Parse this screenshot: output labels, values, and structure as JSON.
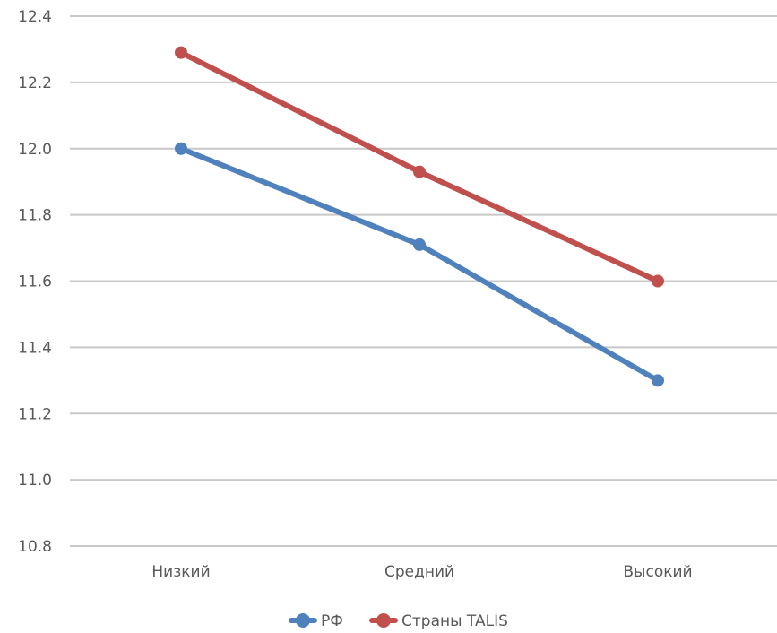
{
  "chart_data": {
    "type": "line",
    "title": "",
    "xlabel": "",
    "ylabel": "",
    "categories": [
      "Низкий",
      "Средний",
      "Высокий"
    ],
    "ylim": [
      10.8,
      12.4
    ],
    "y_ticks": [
      10.8,
      11.0,
      11.2,
      11.4,
      11.6,
      11.8,
      12.0,
      12.2,
      12.4
    ],
    "y_tick_labels": [
      "10.8",
      "11.0",
      "11.2",
      "11.4",
      "11.6",
      "11.8",
      "12.0",
      "12.2",
      "12.4"
    ],
    "grid": "horizontal",
    "legend_position": "bottom",
    "series": [
      {
        "name": "РФ",
        "values": [
          12.0,
          11.71,
          11.3
        ],
        "color": "#4F81BD"
      },
      {
        "name": "Страны TALIS",
        "values": [
          12.29,
          11.93,
          11.6
        ],
        "color": "#C0504D"
      }
    ]
  }
}
